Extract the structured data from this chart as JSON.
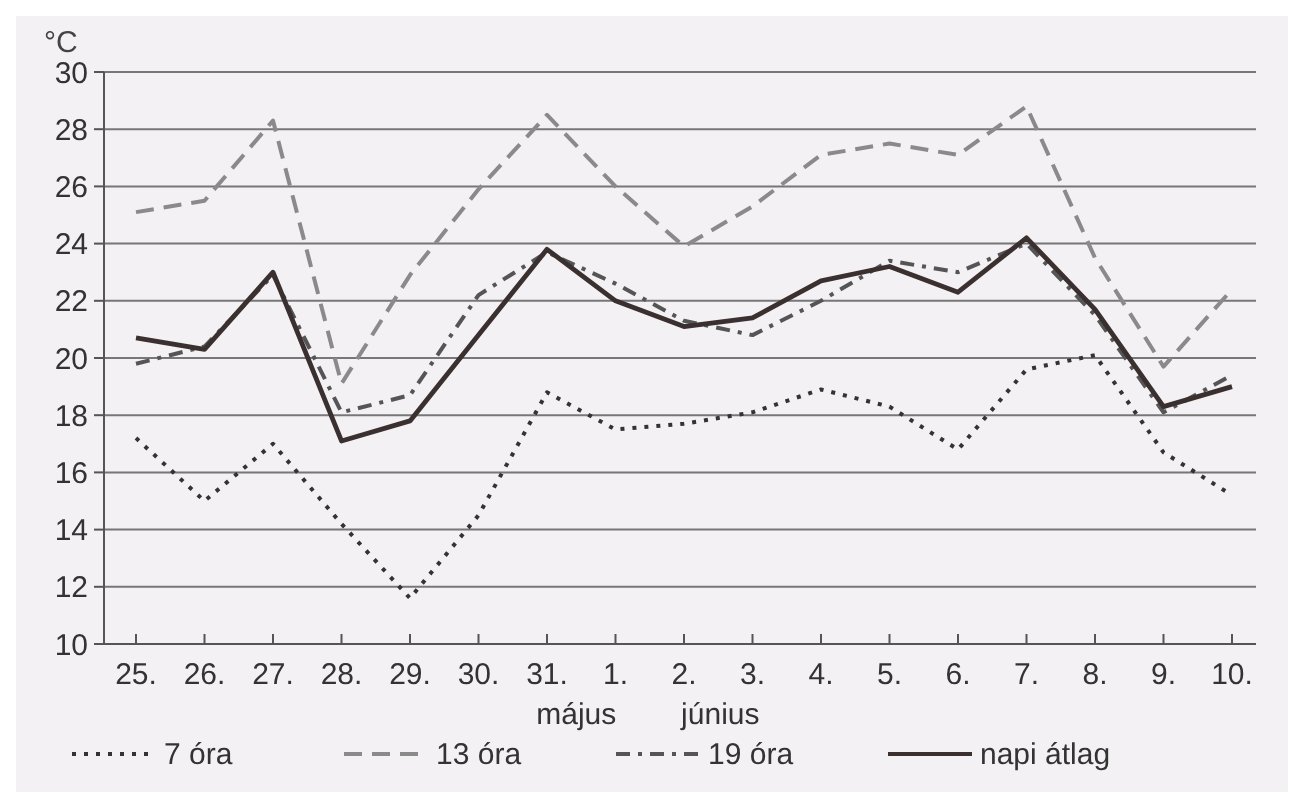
{
  "chart_data": {
    "type": "line",
    "ylabel": "°C",
    "categories": [
      "25.",
      "26.",
      "27.",
      "28.",
      "29.",
      "30.",
      "31.",
      "1.",
      "2.",
      "3.",
      "4.",
      "5.",
      "6.",
      "7.",
      "8.",
      "9.",
      "10."
    ],
    "ylim": [
      10,
      30
    ],
    "yticks": [
      10,
      12,
      14,
      16,
      18,
      20,
      22,
      24,
      26,
      28,
      30
    ],
    "grid": "y",
    "legend": "bottom",
    "annotations": [
      "május",
      "június"
    ],
    "series": [
      {
        "name": "7 óra",
        "color": "#333333",
        "line_style": "dotted",
        "values": [
          17.2,
          15.0,
          17.0,
          14.2,
          11.6,
          14.5,
          18.8,
          17.5,
          17.7,
          18.1,
          18.9,
          18.3,
          16.8,
          19.6,
          20.1,
          16.7,
          15.2
        ]
      },
      {
        "name": "13 óra",
        "color": "#8a8a8a",
        "line_style": "dashed",
        "values": [
          25.1,
          25.5,
          28.3,
          19.1,
          22.9,
          25.9,
          28.5,
          26.0,
          23.9,
          25.3,
          27.1,
          27.5,
          27.1,
          28.8,
          23.5,
          19.7,
          22.4
        ]
      },
      {
        "name": "19 óra",
        "color": "#555555",
        "line_style": "dashdot",
        "values": [
          19.8,
          20.4,
          22.9,
          18.1,
          18.7,
          22.2,
          23.7,
          22.6,
          21.3,
          20.8,
          22.0,
          23.4,
          23.0,
          24.0,
          21.5,
          18.1,
          19.4
        ]
      },
      {
        "name": "napi átlag",
        "color": "#3a3030",
        "line_style": "solid",
        "values": [
          20.7,
          20.3,
          23.0,
          17.1,
          17.8,
          20.8,
          23.8,
          22.0,
          21.1,
          21.4,
          22.7,
          23.2,
          22.3,
          24.2,
          21.7,
          18.3,
          19.0
        ]
      }
    ]
  }
}
